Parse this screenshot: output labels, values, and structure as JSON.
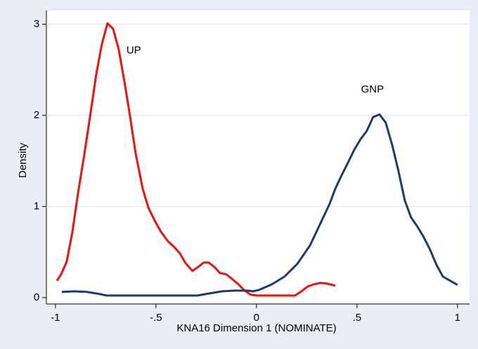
{
  "chart_data": {
    "type": "line",
    "xlabel": "KNA16 Dimension 1 (NOMINATE)",
    "ylabel": "Density",
    "xlim": [
      -1.045,
      1.06
    ],
    "ylim": [
      -0.07,
      3.15
    ],
    "xticks": [
      1,
      {
        "value": 0.5,
        "label": ".5"
      },
      0,
      {
        "value": -0.5,
        "label": "-.5"
      },
      -1
    ],
    "yticks": [
      0,
      1,
      2,
      3
    ],
    "grid": true,
    "series": [
      {
        "name": "UP",
        "color": "#ee1111",
        "label_pos": [
          -0.647,
          2.71
        ],
        "x": [
          -0.993,
          -0.972,
          -0.944,
          -0.916,
          -0.888,
          -0.857,
          -0.829,
          -0.797,
          -0.769,
          -0.741,
          -0.713,
          -0.685,
          -0.657,
          -0.629,
          -0.601,
          -0.566,
          -0.538,
          -0.507,
          -0.476,
          -0.44,
          -0.413,
          -0.381,
          -0.353,
          -0.318,
          -0.294,
          -0.262,
          -0.238,
          -0.206,
          -0.182,
          -0.15,
          -0.119,
          -0.087,
          -0.059,
          -0.028,
          0.003,
          0.035,
          0.1,
          0.192,
          0.224,
          0.255,
          0.287,
          0.318,
          0.35,
          0.392
        ],
        "values": [
          0.185,
          0.254,
          0.393,
          0.717,
          1.14,
          1.565,
          1.97,
          2.45,
          2.78,
          3.01,
          2.95,
          2.72,
          2.37,
          1.99,
          1.58,
          1.195,
          0.987,
          0.848,
          0.725,
          0.617,
          0.563,
          0.486,
          0.378,
          0.293,
          0.33,
          0.385,
          0.385,
          0.33,
          0.27,
          0.254,
          0.2,
          0.139,
          0.077,
          0.031,
          0.023,
          0.023,
          0.023,
          0.023,
          0.069,
          0.123,
          0.146,
          0.162,
          0.154,
          0.131
        ]
      },
      {
        "name": "GNP",
        "color": "#1f3a6e",
        "label_pos": [
          0.52,
          2.28
        ],
        "x": [
          -0.969,
          -0.906,
          -0.843,
          -0.78,
          -0.745,
          -0.5,
          -0.294,
          -0.234,
          -0.171,
          -0.108,
          -0.045,
          -0.017,
          0.014,
          0.077,
          0.14,
          0.203,
          0.266,
          0.329,
          0.364,
          0.392,
          0.423,
          0.455,
          0.486,
          0.517,
          0.549,
          0.58,
          0.612,
          0.643,
          0.675,
          0.706,
          0.738,
          0.769,
          0.801,
          0.832,
          0.864,
          0.895,
          0.927,
          1.0
        ],
        "values": [
          0.062,
          0.069,
          0.062,
          0.039,
          0.023,
          0.023,
          0.023,
          0.046,
          0.069,
          0.077,
          0.077,
          0.069,
          0.085,
          0.146,
          0.231,
          0.37,
          0.571,
          0.864,
          1.03,
          1.195,
          1.34,
          1.48,
          1.62,
          1.735,
          1.83,
          1.98,
          2.01,
          1.92,
          1.675,
          1.39,
          1.065,
          0.879,
          0.779,
          0.663,
          0.524,
          0.362,
          0.231,
          0.139
        ]
      }
    ]
  }
}
